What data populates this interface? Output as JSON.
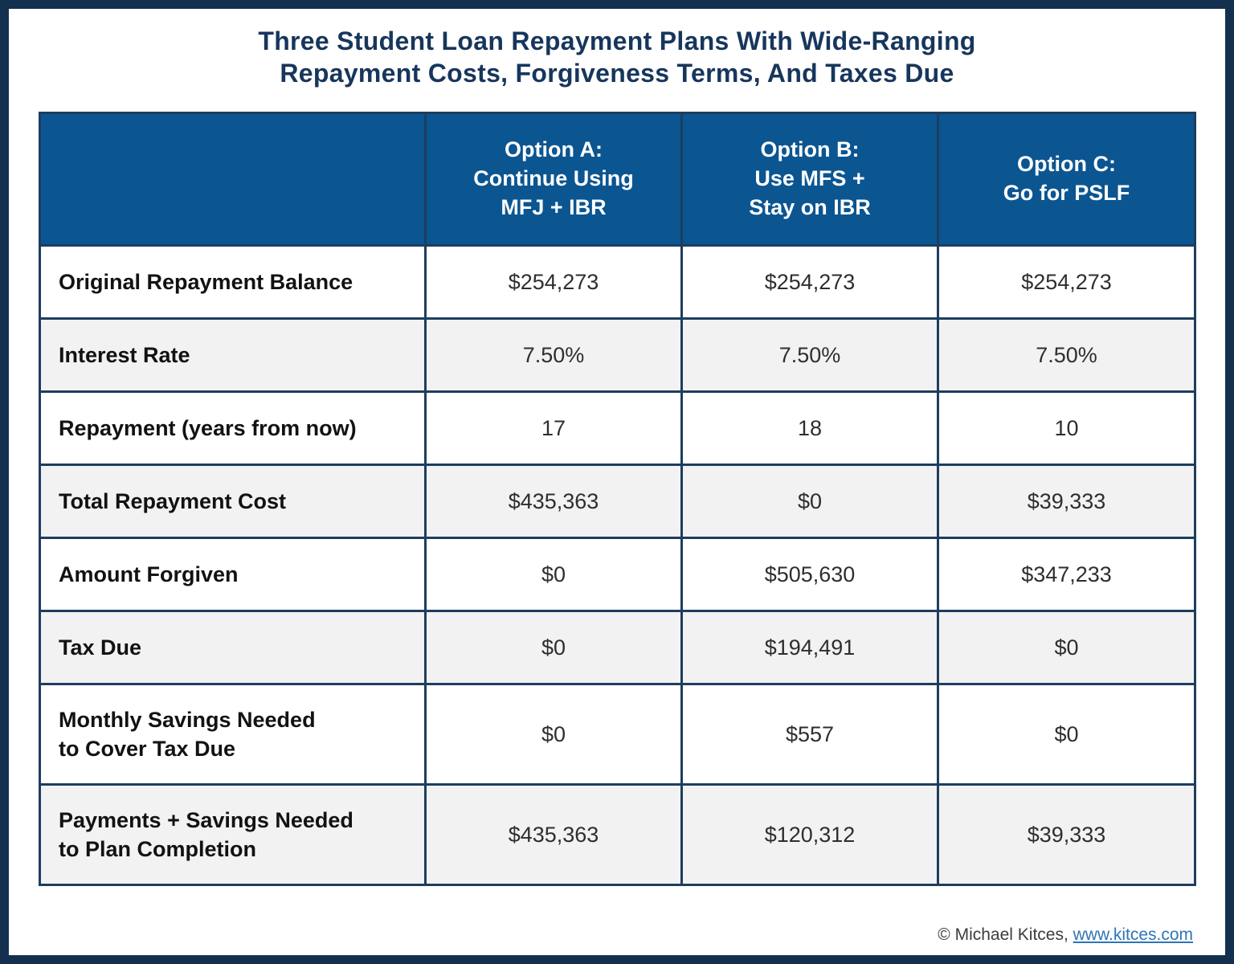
{
  "title": "Three Student Loan Repayment Plans With Wide-Ranging\nRepayment Costs, Forgiveness Terms, And Taxes Due",
  "table": {
    "columns": [
      {
        "label": ""
      },
      {
        "label": "Option A:\nContinue Using\nMFJ + IBR"
      },
      {
        "label": "Option B:\nUse MFS +\nStay on IBR"
      },
      {
        "label": "Option C:\nGo for PSLF"
      }
    ],
    "rows": [
      {
        "label": "Original Repayment Balance",
        "values": [
          "$254,273",
          "$254,273",
          "$254,273"
        ]
      },
      {
        "label": "Interest Rate",
        "values": [
          "7.50%",
          "7.50%",
          "7.50%"
        ]
      },
      {
        "label": "Repayment (years from now)",
        "values": [
          "17",
          "18",
          "10"
        ]
      },
      {
        "label": "Total Repayment Cost",
        "values": [
          "$435,363",
          "$0",
          "$39,333"
        ]
      },
      {
        "label": "Amount Forgiven",
        "values": [
          "$0",
          "$505,630",
          "$347,233"
        ]
      },
      {
        "label": "Tax Due",
        "values": [
          "$0",
          "$194,491",
          "$0"
        ]
      },
      {
        "label": "Monthly Savings Needed\nto Cover Tax Due",
        "values": [
          "$0",
          "$557",
          "$0"
        ]
      },
      {
        "label": "Payments + Savings Needed\nto Plan Completion",
        "values": [
          "$435,363",
          "$120,312",
          "$39,333"
        ]
      }
    ]
  },
  "footer": {
    "copyright": "© Michael Kitces, ",
    "link": "www.kitces.com"
  },
  "colors": {
    "header_bg": "#0B5591",
    "frame_border": "#14304F",
    "grid_line": "#1E3D60",
    "alt_row_bg": "#F2F2F2",
    "title_text": "#17365C",
    "link": "#2E75B6"
  },
  "chart_data": {
    "type": "table",
    "title": "Three Student Loan Repayment Plans With Wide-Ranging Repayment Costs, Forgiveness Terms, And Taxes Due",
    "columns": [
      "",
      "Option A: Continue Using MFJ + IBR",
      "Option B: Use MFS + Stay on IBR",
      "Option C: Go for PSLF"
    ],
    "rows": [
      [
        "Original Repayment Balance",
        "$254,273",
        "$254,273",
        "$254,273"
      ],
      [
        "Interest Rate",
        "7.50%",
        "7.50%",
        "7.50%"
      ],
      [
        "Repayment (years from now)",
        "17",
        "18",
        "10"
      ],
      [
        "Total Repayment Cost",
        "$435,363",
        "$0",
        "$39,333"
      ],
      [
        "Amount Forgiven",
        "$0",
        "$505,630",
        "$347,233"
      ],
      [
        "Tax Due",
        "$0",
        "$194,491",
        "$0"
      ],
      [
        "Monthly Savings Needed to Cover Tax Due",
        "$0",
        "$557",
        "$0"
      ],
      [
        "Payments + Savings Needed to Plan Completion",
        "$435,363",
        "$120,312",
        "$39,333"
      ]
    ]
  }
}
